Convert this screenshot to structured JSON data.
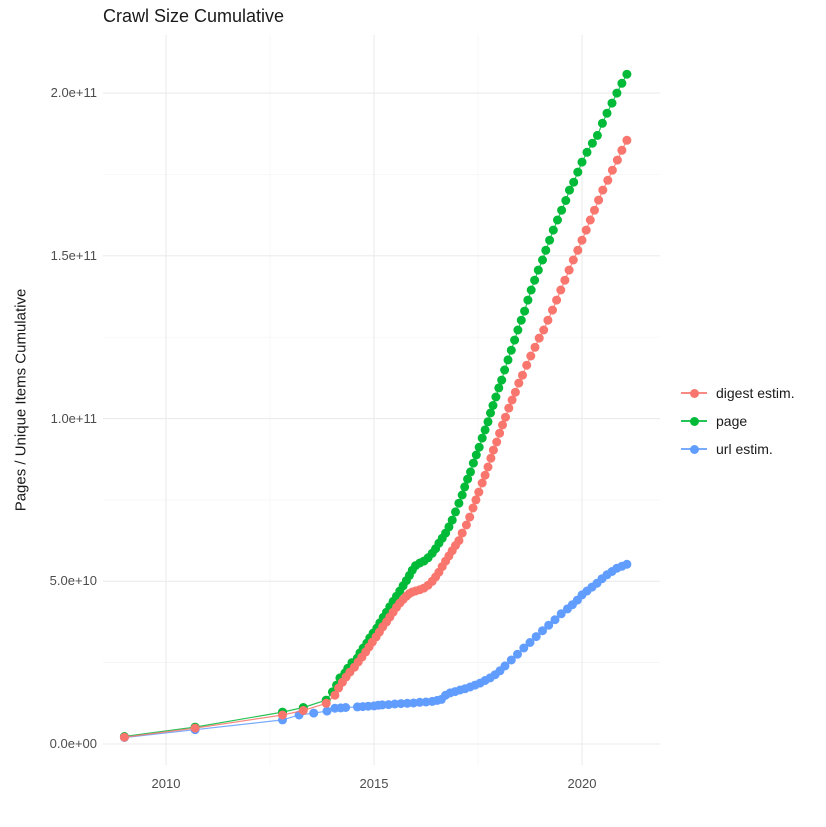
{
  "title": "Crawl Size Cumulative",
  "chart_data": {
    "type": "scatter",
    "title": "Crawl Size Cumulative",
    "xlabel": "",
    "ylabel": "Pages / Unique Items Cumulative",
    "value_unit": "1e9 (billions of pages / unique items)",
    "xlim": [
      2008.4,
      2021.7
    ],
    "ylim": [
      0,
      215000000000.0
    ],
    "grid": true,
    "legend_position": "right",
    "x_ticks": {
      "major": [
        2010,
        2015,
        2020
      ],
      "minor": [
        2012.5,
        2017.5
      ],
      "labels": [
        "2010",
        "2015",
        "2020"
      ]
    },
    "y_ticks": {
      "major_e9": [
        0,
        50,
        100,
        150,
        200
      ],
      "minor_e9": [
        25,
        75,
        125,
        175
      ],
      "labels": [
        "0.0e+00",
        "5.0e+10",
        "1.0e+11",
        "1.5e+11",
        "2.0e+11"
      ]
    },
    "series": [
      {
        "name": "page",
        "color": "#00BA38",
        "points_year_value_e9": [
          [
            2009.0,
            2.3
          ],
          [
            2010.7,
            5.2
          ],
          [
            2012.8,
            9.8
          ],
          [
            2013.3,
            11.2
          ],
          [
            2013.85,
            13.5
          ],
          [
            2014.0,
            16.0
          ],
          [
            2014.1,
            18.1
          ],
          [
            2014.18,
            20.3
          ],
          [
            2014.3,
            21.8
          ],
          [
            2014.37,
            23.3
          ],
          [
            2014.47,
            25.0
          ],
          [
            2014.6,
            26.4
          ],
          [
            2014.66,
            28.0
          ],
          [
            2014.74,
            29.5
          ],
          [
            2014.83,
            31.0
          ],
          [
            2014.9,
            32.6
          ],
          [
            2014.98,
            34.1
          ],
          [
            2015.07,
            35.6
          ],
          [
            2015.14,
            37.2
          ],
          [
            2015.22,
            38.9
          ],
          [
            2015.3,
            40.5
          ],
          [
            2015.38,
            42.2
          ],
          [
            2015.46,
            43.8
          ],
          [
            2015.54,
            45.4
          ],
          [
            2015.62,
            47.0
          ],
          [
            2015.7,
            48.6
          ],
          [
            2015.78,
            50.2
          ],
          [
            2015.85,
            51.8
          ],
          [
            2015.92,
            53.4
          ],
          [
            2016.0,
            54.8
          ],
          [
            2016.1,
            55.6
          ],
          [
            2016.2,
            56.2
          ],
          [
            2016.3,
            57.2
          ],
          [
            2016.4,
            58.6
          ],
          [
            2016.48,
            60.0
          ],
          [
            2016.56,
            61.7
          ],
          [
            2016.64,
            63.2
          ],
          [
            2016.72,
            64.8
          ],
          [
            2016.8,
            66.7
          ],
          [
            2016.88,
            68.8
          ],
          [
            2016.96,
            71.3
          ],
          [
            2017.04,
            74.0
          ],
          [
            2017.12,
            76.5
          ],
          [
            2017.18,
            79.0
          ],
          [
            2017.25,
            81.4
          ],
          [
            2017.32,
            83.6
          ],
          [
            2017.39,
            86.3
          ],
          [
            2017.46,
            88.8
          ],
          [
            2017.53,
            91.2
          ],
          [
            2017.6,
            94.0
          ],
          [
            2017.67,
            96.5
          ],
          [
            2017.74,
            99.0
          ],
          [
            2017.8,
            101.7
          ],
          [
            2017.86,
            104.0
          ],
          [
            2017.93,
            106.6
          ],
          [
            2018.0,
            109.4
          ],
          [
            2018.07,
            111.8
          ],
          [
            2018.14,
            114.9
          ],
          [
            2018.22,
            118.0
          ],
          [
            2018.3,
            121.0
          ],
          [
            2018.38,
            124.1
          ],
          [
            2018.46,
            127.2
          ],
          [
            2018.54,
            130.2
          ],
          [
            2018.62,
            133.0
          ],
          [
            2018.7,
            136.4
          ],
          [
            2018.78,
            139.5
          ],
          [
            2018.86,
            142.5
          ],
          [
            2018.95,
            145.6
          ],
          [
            2019.05,
            148.7
          ],
          [
            2019.13,
            151.7
          ],
          [
            2019.22,
            154.8
          ],
          [
            2019.31,
            157.9
          ],
          [
            2019.41,
            161.0
          ],
          [
            2019.51,
            164.0
          ],
          [
            2019.61,
            167.0
          ],
          [
            2019.7,
            170.2
          ],
          [
            2019.8,
            172.6
          ],
          [
            2019.9,
            175.7
          ],
          [
            2020.0,
            178.8
          ],
          [
            2020.12,
            181.8
          ],
          [
            2020.25,
            184.6
          ],
          [
            2020.37,
            187.0
          ],
          [
            2020.49,
            190.7
          ],
          [
            2020.6,
            193.8
          ],
          [
            2020.72,
            196.9
          ],
          [
            2020.84,
            200.0
          ],
          [
            2020.96,
            203.0
          ],
          [
            2021.08,
            205.8
          ]
        ]
      },
      {
        "name": "url estim.",
        "color": "#619CFF",
        "points_year_value_e9": [
          [
            2009.0,
            2.0
          ],
          [
            2010.7,
            4.4
          ],
          [
            2012.8,
            7.4
          ],
          [
            2013.2,
            8.9
          ],
          [
            2013.55,
            9.5
          ],
          [
            2013.87,
            10.1
          ],
          [
            2014.06,
            11.0
          ],
          [
            2014.2,
            11.1
          ],
          [
            2014.32,
            11.2
          ],
          [
            2014.6,
            11.4
          ],
          [
            2014.73,
            11.5
          ],
          [
            2014.86,
            11.6
          ],
          [
            2015.0,
            11.7
          ],
          [
            2015.1,
            11.9
          ],
          [
            2015.2,
            12.0
          ],
          [
            2015.35,
            12.1
          ],
          [
            2015.5,
            12.3
          ],
          [
            2015.65,
            12.4
          ],
          [
            2015.8,
            12.5
          ],
          [
            2015.95,
            12.6
          ],
          [
            2016.1,
            12.8
          ],
          [
            2016.25,
            12.9
          ],
          [
            2016.4,
            13.1
          ],
          [
            2016.52,
            13.4
          ],
          [
            2016.62,
            13.7
          ],
          [
            2016.72,
            15.0
          ],
          [
            2016.83,
            15.7
          ],
          [
            2016.95,
            16.1
          ],
          [
            2017.07,
            16.6
          ],
          [
            2017.19,
            17.0
          ],
          [
            2017.31,
            17.5
          ],
          [
            2017.43,
            18.1
          ],
          [
            2017.55,
            18.7
          ],
          [
            2017.67,
            19.5
          ],
          [
            2017.79,
            20.3
          ],
          [
            2017.91,
            21.3
          ],
          [
            2018.03,
            22.5
          ],
          [
            2018.15,
            24.0
          ],
          [
            2018.3,
            25.8
          ],
          [
            2018.45,
            27.6
          ],
          [
            2018.6,
            29.5
          ],
          [
            2018.75,
            31.2
          ],
          [
            2018.9,
            33.0
          ],
          [
            2019.05,
            34.8
          ],
          [
            2019.2,
            36.5
          ],
          [
            2019.35,
            38.2
          ],
          [
            2019.5,
            40.0
          ],
          [
            2019.65,
            41.5
          ],
          [
            2019.77,
            42.8
          ],
          [
            2019.89,
            44.2
          ],
          [
            2020.0,
            45.8
          ],
          [
            2020.12,
            47.0
          ],
          [
            2020.24,
            48.2
          ],
          [
            2020.36,
            49.4
          ],
          [
            2020.48,
            50.8
          ],
          [
            2020.6,
            52.0
          ],
          [
            2020.72,
            53.0
          ],
          [
            2020.84,
            54.0
          ],
          [
            2020.96,
            54.6
          ],
          [
            2021.08,
            55.2
          ]
        ]
      },
      {
        "name": "digest estim.",
        "color": "#F8766D",
        "points_year_value_e9": [
          [
            2009.0,
            2.1
          ],
          [
            2010.7,
            4.9
          ],
          [
            2012.8,
            8.9
          ],
          [
            2013.3,
            10.3
          ],
          [
            2013.85,
            12.5
          ],
          [
            2014.06,
            15.0
          ],
          [
            2014.15,
            17.2
          ],
          [
            2014.24,
            19.0
          ],
          [
            2014.33,
            20.6
          ],
          [
            2014.42,
            22.1
          ],
          [
            2014.53,
            23.6
          ],
          [
            2014.62,
            25.2
          ],
          [
            2014.71,
            26.7
          ],
          [
            2014.8,
            28.3
          ],
          [
            2014.88,
            29.8
          ],
          [
            2014.96,
            31.3
          ],
          [
            2015.05,
            32.9
          ],
          [
            2015.13,
            34.4
          ],
          [
            2015.21,
            36.0
          ],
          [
            2015.3,
            37.5
          ],
          [
            2015.38,
            39.0
          ],
          [
            2015.46,
            40.5
          ],
          [
            2015.54,
            42.0
          ],
          [
            2015.62,
            43.3
          ],
          [
            2015.7,
            44.4
          ],
          [
            2015.78,
            45.4
          ],
          [
            2015.85,
            46.2
          ],
          [
            2015.92,
            46.7
          ],
          [
            2016.0,
            47.0
          ],
          [
            2016.1,
            47.4
          ],
          [
            2016.2,
            47.9
          ],
          [
            2016.3,
            48.8
          ],
          [
            2016.4,
            50.0
          ],
          [
            2016.48,
            51.3
          ],
          [
            2016.56,
            52.8
          ],
          [
            2016.64,
            54.5
          ],
          [
            2016.72,
            56.2
          ],
          [
            2016.8,
            57.8
          ],
          [
            2016.88,
            59.4
          ],
          [
            2016.96,
            61.0
          ],
          [
            2017.04,
            62.5
          ],
          [
            2017.12,
            64.8
          ],
          [
            2017.22,
            67.3
          ],
          [
            2017.3,
            69.7
          ],
          [
            2017.38,
            72.5
          ],
          [
            2017.45,
            75.0
          ],
          [
            2017.52,
            77.4
          ],
          [
            2017.6,
            80.2
          ],
          [
            2017.67,
            82.6
          ],
          [
            2017.74,
            85.1
          ],
          [
            2017.81,
            87.8
          ],
          [
            2017.87,
            90.3
          ],
          [
            2017.95,
            92.8
          ],
          [
            2018.02,
            95.5
          ],
          [
            2018.09,
            98.0
          ],
          [
            2018.16,
            100.4
          ],
          [
            2018.24,
            103.2
          ],
          [
            2018.32,
            105.7
          ],
          [
            2018.4,
            108.1
          ],
          [
            2018.48,
            110.9
          ],
          [
            2018.57,
            113.3
          ],
          [
            2018.67,
            116.4
          ],
          [
            2018.77,
            119.2
          ],
          [
            2018.87,
            121.9
          ],
          [
            2018.97,
            124.7
          ],
          [
            2019.08,
            127.2
          ],
          [
            2019.18,
            130.2
          ],
          [
            2019.29,
            133.3
          ],
          [
            2019.39,
            136.4
          ],
          [
            2019.49,
            139.5
          ],
          [
            2019.59,
            142.5
          ],
          [
            2019.69,
            145.6
          ],
          [
            2019.79,
            148.7
          ],
          [
            2019.9,
            151.7
          ],
          [
            2020.0,
            154.8
          ],
          [
            2020.1,
            157.9
          ],
          [
            2020.2,
            161.0
          ],
          [
            2020.3,
            164.0
          ],
          [
            2020.4,
            167.1
          ],
          [
            2020.5,
            170.2
          ],
          [
            2020.62,
            173.2
          ],
          [
            2020.73,
            176.3
          ],
          [
            2020.85,
            179.4
          ],
          [
            2020.96,
            182.4
          ],
          [
            2021.08,
            185.5
          ]
        ]
      }
    ]
  },
  "legend": {
    "items": [
      {
        "label": "digest estim.",
        "color": "#F8766D"
      },
      {
        "label": "page",
        "color": "#00BA38"
      },
      {
        "label": "url estim.",
        "color": "#619CFF"
      }
    ]
  },
  "style": {
    "background": "#ffffff",
    "grid_major_color": "#EBEBEB",
    "grid_minor_color": "#F4F4F4",
    "axis_text_color": "#4d4d4d",
    "title_color": "#1a1a1a"
  }
}
